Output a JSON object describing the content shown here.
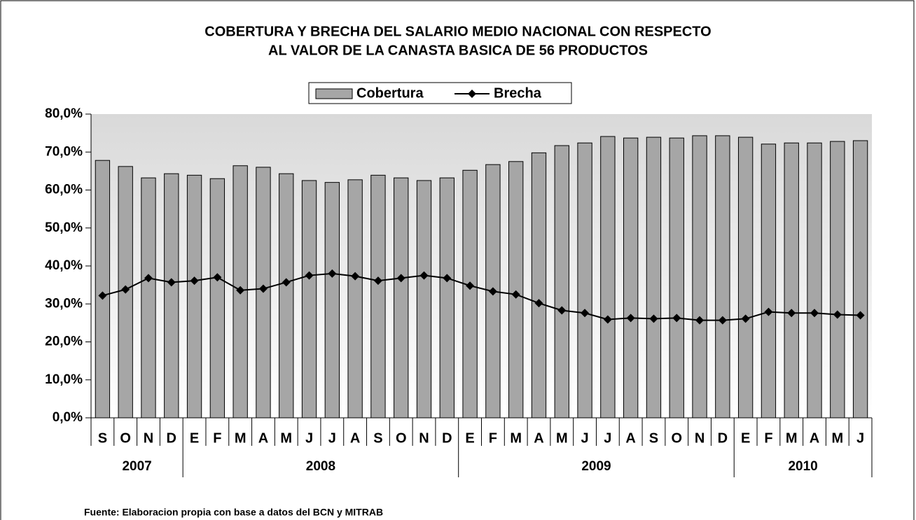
{
  "chart_data": {
    "type": "bar_line",
    "title": [
      "COBERTURA Y BRECHA DEL SALARIO MEDIO NACIONAL CON RESPECTO",
      "AL VALOR DE  LA CANASTA BASICA DE 56 PRODUCTOS"
    ],
    "categories": [
      "S",
      "O",
      "N",
      "D",
      "E",
      "F",
      "M",
      "A",
      "M",
      "J",
      "J",
      "A",
      "S",
      "O",
      "N",
      "D",
      "E",
      "F",
      "M",
      "A",
      "M",
      "J",
      "J",
      "A",
      "S",
      "O",
      "N",
      "D",
      "E",
      "F",
      "M",
      "A",
      "M",
      "J"
    ],
    "years": [
      {
        "label": "2007",
        "span": 4
      },
      {
        "label": "2008",
        "span": 12
      },
      {
        "label": "2009",
        "span": 12
      },
      {
        "label": "2010",
        "span": 6
      }
    ],
    "series": [
      {
        "name": "Cobertura",
        "color": "#a6a6a6",
        "kind": "bar",
        "values": [
          67.8,
          66.2,
          63.2,
          64.3,
          63.9,
          63.0,
          66.4,
          66.0,
          64.3,
          62.5,
          62.0,
          62.7,
          63.9,
          63.2,
          62.5,
          63.2,
          65.2,
          66.7,
          67.5,
          69.8,
          71.7,
          72.4,
          74.1,
          73.7,
          73.9,
          73.7,
          74.3,
          74.3,
          73.9,
          72.1,
          72.4,
          72.4,
          72.8,
          73.0
        ]
      },
      {
        "name": "Brecha",
        "color": "#000000",
        "kind": "line",
        "values": [
          32.2,
          33.8,
          36.8,
          35.7,
          36.1,
          37.0,
          33.6,
          34.0,
          35.7,
          37.5,
          38.0,
          37.3,
          36.1,
          36.8,
          37.5,
          36.8,
          34.8,
          33.3,
          32.5,
          30.2,
          28.3,
          27.6,
          25.9,
          26.3,
          26.1,
          26.3,
          25.7,
          25.7,
          26.1,
          27.9,
          27.6,
          27.6,
          27.2,
          27.0
        ]
      }
    ],
    "ylim": [
      0,
      80
    ],
    "yticks": [
      {
        "value": 0,
        "label": "0,0%"
      },
      {
        "value": 10,
        "label": "10,0%"
      },
      {
        "value": 20,
        "label": "20,0%"
      },
      {
        "value": 30,
        "label": "30,0%"
      },
      {
        "value": 40,
        "label": "40,0%"
      },
      {
        "value": 50,
        "label": "50,0%"
      },
      {
        "value": 60,
        "label": "60,0%"
      },
      {
        "value": 70,
        "label": "70,0%"
      },
      {
        "value": 80,
        "label": "80,0%"
      }
    ],
    "source": "Fuente: Elaboracion propia con base a datos del BCN y MITRAB"
  }
}
